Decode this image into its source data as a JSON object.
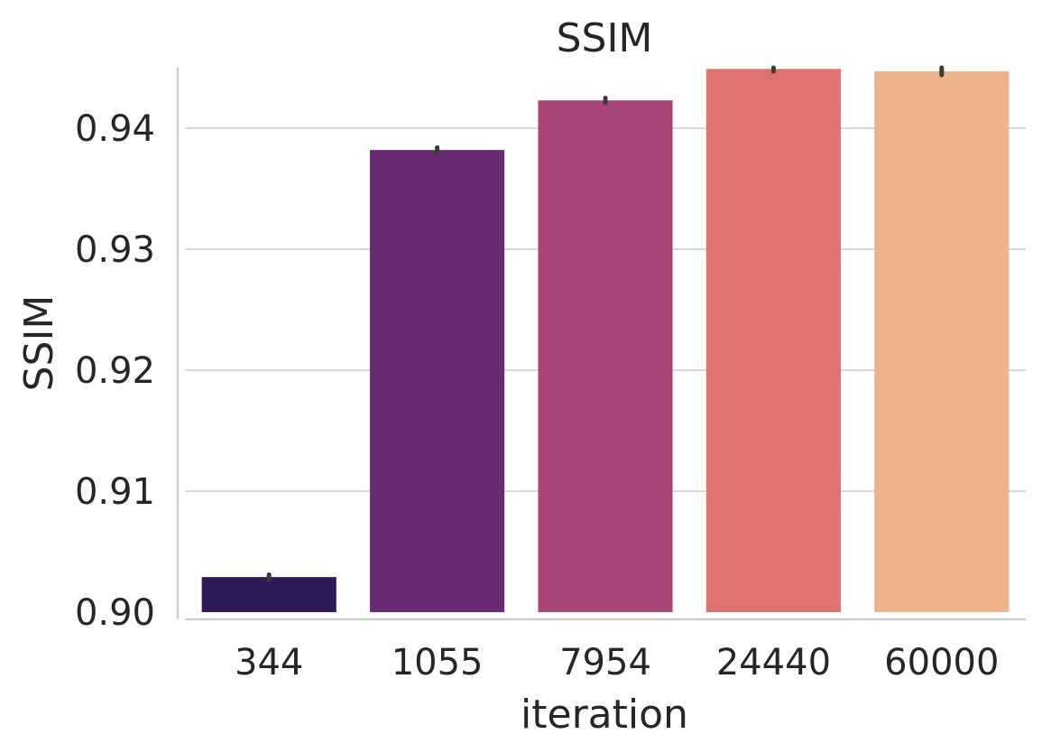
{
  "chart_data": {
    "type": "bar",
    "title": "SSIM",
    "xlabel": "iteration",
    "ylabel": "SSIM",
    "categories": [
      "344",
      "1055",
      "7954",
      "24440",
      "60000"
    ],
    "values": [
      0.9029,
      0.9382,
      0.9423,
      0.9449,
      0.9447
    ],
    "errors": [
      [
        0.9027,
        0.9031
      ],
      [
        0.938,
        0.9384
      ],
      [
        0.9421,
        0.9425
      ],
      [
        0.9447,
        0.9451
      ],
      [
        0.9444,
        0.945
      ]
    ],
    "colors": [
      "#2d1a57",
      "#692a73",
      "#a64677",
      "#df726f",
      "#eeb388"
    ],
    "ylim": [
      0.9,
      0.945
    ],
    "yticks": [
      0.9,
      0.91,
      0.92,
      0.93,
      0.94
    ],
    "ytick_labels": [
      "0.90",
      "0.91",
      "0.92",
      "0.93",
      "0.94"
    ],
    "grid": "y"
  }
}
